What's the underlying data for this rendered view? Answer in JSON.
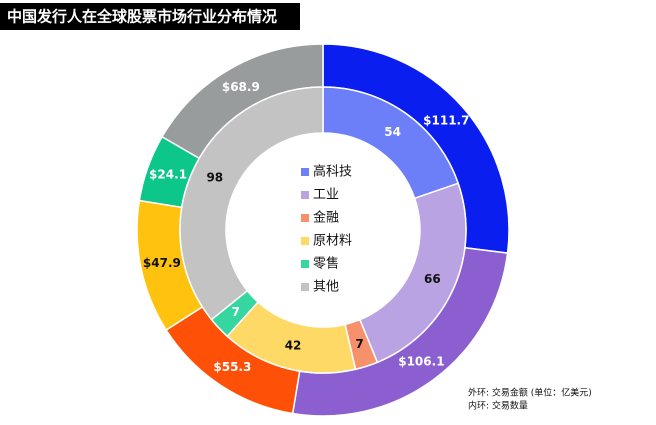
{
  "chart_data": {
    "type": "donut",
    "title": "中国发行人在全球股票市场行业分布情况",
    "categories": [
      "高科技",
      "工业",
      "金融",
      "原材料",
      "零售",
      "其他"
    ],
    "series": [
      {
        "values": [
          111.7,
          106.1,
          55.3,
          47.9,
          24.1,
          68.9
        ],
        "value_labels": [
          "$111.7",
          "$106.1",
          "$55.3",
          "$47.9",
          "$24.1",
          "$68.9"
        ],
        "colors": [
          "#0a1ef0",
          "#8b5fd0",
          "#ff5008",
          "#ffc20e",
          "#0cc68a",
          "#999c9c"
        ]
      },
      {
        "values": [
          54,
          66,
          7,
          42,
          7,
          98
        ],
        "colors": [
          "#6c7ef8",
          "#b9a3e2",
          "#f7916c",
          "#ffd966",
          "#35d6a0",
          "#c3c3c3"
        ]
      }
    ],
    "notes": [
      "外环: 交易金额 (单位：亿美元)",
      "内环: 交易数量"
    ]
  }
}
